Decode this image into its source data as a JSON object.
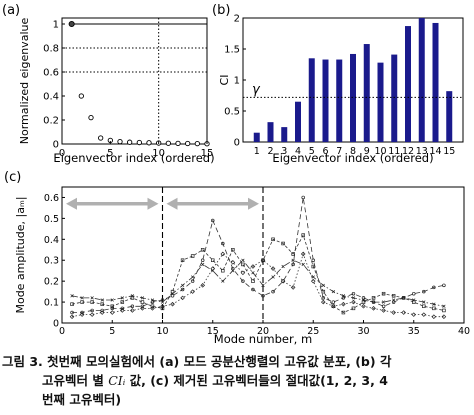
{
  "panels": {
    "a": {
      "label": "(a)",
      "xlabel": "Eigenvector index (ordered)",
      "ylabel": "Normalized eigenvalue",
      "xticks": [
        "0",
        "5",
        "10",
        "15"
      ],
      "yticks": [
        "0",
        "0.2",
        "0.4",
        "0.6",
        "0.8",
        "1"
      ]
    },
    "b": {
      "label": "(b)",
      "xlabel": "Eigenvector index (ordered)",
      "ylabel": "CI",
      "threshold_label": "γ",
      "xticks": [
        "1",
        "2",
        "3",
        "4",
        "5",
        "6",
        "7",
        "8",
        "9",
        "10",
        "11",
        "12",
        "13",
        "14",
        "15"
      ],
      "yticks": [
        "0",
        "0.5",
        "1",
        "1.5",
        "2"
      ]
    },
    "c": {
      "label": "(c)",
      "xlabel": "Mode number, m",
      "ylabel": "Mode amplitude, |aₘ|",
      "xticks": [
        "0",
        "5",
        "10",
        "15",
        "20",
        "25",
        "30",
        "35",
        "40"
      ],
      "yticks": [
        "0",
        "0.1",
        "0.2",
        "0.3",
        "0.4",
        "0.5",
        "0.6"
      ]
    }
  },
  "caption": {
    "line1": "그림 3. 첫번째 모의실험에서 (a) 모드  공분산행렬의 고유값 분포, (b) 각",
    "line2a": "고유벡터 별 ",
    "ci_symbol": "CIᵢ",
    "line2b": " 값, (c) 제거된 고유벡터들의 절대값(1, 2, 3, 4",
    "line3": "번째 고유벡터)"
  },
  "chart_data": [
    {
      "type": "scatter",
      "panel": "a",
      "x": [
        1,
        2,
        3,
        4,
        5,
        6,
        7,
        8,
        9,
        10,
        11,
        12,
        13,
        14,
        15
      ],
      "y": [
        1.0,
        0.4,
        0.22,
        0.05,
        0.03,
        0.02,
        0.015,
        0.012,
        0.01,
        0.008,
        0.006,
        0.005,
        0.004,
        0.003,
        0.002
      ],
      "xlim": [
        0,
        15
      ],
      "ylim": [
        0,
        1.05
      ],
      "vline_x": 10,
      "hlines_y": [
        0.8,
        0.6
      ],
      "xlabel": "Eigenvector index (ordered)",
      "ylabel": "Normalized eigenvalue"
    },
    {
      "type": "bar",
      "panel": "b",
      "categories": [
        "1",
        "2",
        "3",
        "4",
        "5",
        "6",
        "7",
        "8",
        "9",
        "10",
        "11",
        "12",
        "13",
        "14",
        "15"
      ],
      "values": [
        0.15,
        0.32,
        0.24,
        0.65,
        1.35,
        1.33,
        1.33,
        1.42,
        1.58,
        1.28,
        1.41,
        1.87,
        2.0,
        1.92,
        0.82
      ],
      "ylim": [
        0,
        2.0
      ],
      "threshold": 0.72,
      "color": "#1a1a8c",
      "xlabel": "Eigenvector index (ordered)",
      "ylabel": "CI"
    },
    {
      "type": "line",
      "panel": "c",
      "xlim": [
        0,
        40
      ],
      "ylim": [
        0,
        0.65
      ],
      "vlines_x": [
        10,
        20
      ],
      "arrows": [
        [
          0,
          10
        ],
        [
          10,
          20
        ]
      ],
      "arrow_y": 0.57,
      "xlabel": "Mode number, m",
      "ylabel": "Mode amplitude, |aₘ|",
      "series": [
        {
          "x": [
            1,
            2,
            3,
            4,
            5,
            6,
            7,
            8,
            9,
            10,
            11,
            12,
            13,
            14,
            15,
            16,
            17,
            18,
            19,
            20,
            21,
            22,
            23,
            24,
            25,
            26,
            27,
            28,
            29,
            30,
            31,
            32,
            33,
            34,
            35,
            36,
            37,
            38
          ],
          "values": [
            0.05,
            0.05,
            0.06,
            0.06,
            0.07,
            0.07,
            0.08,
            0.08,
            0.1,
            0.11,
            0.13,
            0.16,
            0.2,
            0.3,
            0.49,
            0.38,
            0.26,
            0.2,
            0.16,
            0.13,
            0.15,
            0.2,
            0.28,
            0.6,
            0.3,
            0.12,
            0.1,
            0.12,
            0.14,
            0.12,
            0.1,
            0.08,
            0.1,
            0.12,
            0.14,
            0.15,
            0.17,
            0.18
          ]
        },
        {
          "x": [
            1,
            2,
            3,
            4,
            5,
            6,
            7,
            8,
            9,
            10,
            11,
            12,
            13,
            14,
            15,
            16,
            17,
            18,
            19,
            20,
            21,
            22,
            23,
            24,
            25,
            26,
            27,
            28,
            29,
            30,
            31,
            32,
            33,
            34,
            35,
            36,
            37,
            38
          ],
          "values": [
            0.09,
            0.1,
            0.1,
            0.09,
            0.08,
            0.1,
            0.12,
            0.1,
            0.08,
            0.07,
            0.15,
            0.3,
            0.32,
            0.35,
            0.3,
            0.25,
            0.35,
            0.28,
            0.2,
            0.3,
            0.4,
            0.38,
            0.33,
            0.42,
            0.27,
            0.15,
            0.08,
            0.05,
            0.07,
            0.1,
            0.12,
            0.14,
            0.13,
            0.12,
            0.1,
            0.08,
            0.07,
            0.06
          ]
        },
        {
          "x": [
            1,
            2,
            3,
            4,
            5,
            6,
            7,
            8,
            9,
            10,
            11,
            12,
            13,
            14,
            15,
            16,
            17,
            18,
            19,
            20,
            21,
            22,
            23,
            24,
            25,
            26,
            27,
            28,
            29,
            30,
            31,
            32,
            33,
            34,
            35,
            36,
            37,
            38
          ],
          "values": [
            0.03,
            0.04,
            0.04,
            0.05,
            0.05,
            0.06,
            0.06,
            0.07,
            0.07,
            0.08,
            0.09,
            0.12,
            0.15,
            0.18,
            0.26,
            0.33,
            0.29,
            0.24,
            0.27,
            0.3,
            0.26,
            0.2,
            0.17,
            0.33,
            0.2,
            0.1,
            0.08,
            0.09,
            0.1,
            0.08,
            0.07,
            0.06,
            0.05,
            0.05,
            0.04,
            0.04,
            0.03,
            0.03
          ]
        },
        {
          "x": [
            1,
            2,
            3,
            4,
            5,
            6,
            7,
            8,
            9,
            10,
            11,
            12,
            13,
            14,
            15,
            16,
            17,
            18,
            19,
            20,
            21,
            22,
            23,
            24,
            25,
            26,
            27,
            28,
            29,
            30,
            31,
            32,
            33,
            34,
            35,
            36,
            37,
            38
          ],
          "values": [
            0.13,
            0.12,
            0.12,
            0.11,
            0.11,
            0.12,
            0.13,
            0.12,
            0.11,
            0.1,
            0.14,
            0.18,
            0.22,
            0.28,
            0.25,
            0.2,
            0.25,
            0.3,
            0.24,
            0.18,
            0.22,
            0.27,
            0.3,
            0.28,
            0.22,
            0.18,
            0.15,
            0.13,
            0.12,
            0.11,
            0.1,
            0.1,
            0.11,
            0.12,
            0.11,
            0.1,
            0.09,
            0.08
          ]
        }
      ]
    }
  ]
}
